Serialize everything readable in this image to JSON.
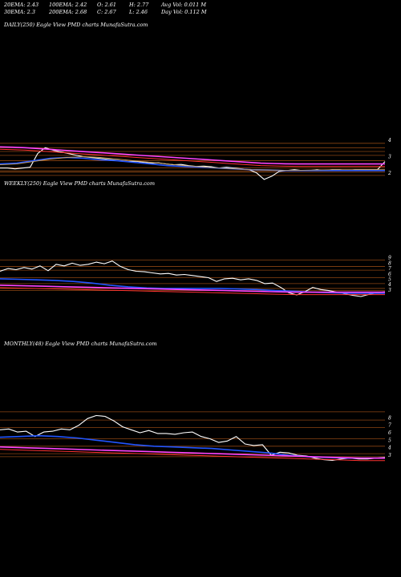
{
  "header": {
    "row1": [
      {
        "key": "ema20",
        "text": "20EMA: 2.43"
      },
      {
        "key": "ema100",
        "text": "100EMA: 2.42"
      },
      {
        "key": "open",
        "text": "O: 2.61"
      },
      {
        "key": "high",
        "text": "H: 2.77"
      },
      {
        "key": "avgvol",
        "text": "Avg Vol: 0.011  M"
      }
    ],
    "row2": [
      {
        "key": "ema30",
        "text": "30EMA: 2.3"
      },
      {
        "key": "ema200",
        "text": "200EMA: 2.68"
      },
      {
        "key": "close",
        "text": "C: 2.67"
      },
      {
        "key": "low",
        "text": "L: 2.46"
      },
      {
        "key": "dayvol",
        "text": "Day Vol: 0.112  M"
      }
    ]
  },
  "colors": {
    "background": "#000000",
    "price": "#ffffff",
    "ema_blue": "#2255ff",
    "ema_magenta": "#ff44ff",
    "ema_red": "#ff3333",
    "ema_gold": "#c8a060",
    "level_line": "#8b4513"
  },
  "chart_data": [
    {
      "type": "line",
      "title": "DAILY(250) Eagle  View  PMD charts MunafaSutra.com",
      "y_ticks": [
        "4",
        "3",
        "2"
      ],
      "y_tick_values": [
        4,
        3,
        2
      ],
      "ylim": [
        1.4,
        4.5
      ],
      "levels": [
        3.82,
        3.55,
        3.32,
        3.08,
        2.75,
        2.32,
        2.13,
        2.05,
        1.85
      ],
      "series": [
        {
          "role": "price",
          "values": [
            2.3,
            2.3,
            2.25,
            2.3,
            2.35,
            3.2,
            3.55,
            3.4,
            3.3,
            3.2,
            3.1,
            3.0,
            2.95,
            2.9,
            2.85,
            2.8,
            2.75,
            2.7,
            2.72,
            2.65,
            2.6,
            2.62,
            2.55,
            2.5,
            2.52,
            2.45,
            2.4,
            2.42,
            2.38,
            2.3,
            2.35,
            2.3,
            2.25,
            2.2,
            2.0,
            1.6,
            1.8,
            2.1,
            2.15,
            2.2,
            2.15,
            2.15,
            2.2,
            2.15,
            2.2,
            2.2,
            2.15,
            2.2,
            2.2,
            2.2,
            2.2,
            2.7
          ]
        },
        {
          "role": "ema",
          "color": "magenta",
          "values": [
            3.6,
            3.58,
            3.55,
            3.5,
            3.45,
            3.4,
            3.35,
            3.3,
            3.25,
            3.2,
            3.15,
            3.1,
            3.05,
            3.0,
            2.95,
            2.9,
            2.85,
            2.8,
            2.75,
            2.7,
            2.65,
            2.6,
            2.58,
            2.56,
            2.55,
            2.55,
            2.55,
            2.55,
            2.55,
            2.55,
            2.55,
            2.55
          ]
        },
        {
          "role": "ema",
          "color": "blue",
          "values": [
            2.55,
            2.6,
            2.75,
            2.9,
            2.95,
            2.9,
            2.8,
            2.75,
            2.65,
            2.55,
            2.45,
            2.4,
            2.35,
            2.3,
            2.25,
            2.2,
            2.18,
            2.15,
            2.15,
            2.15,
            2.15,
            2.15,
            2.15,
            2.15
          ]
        },
        {
          "role": "ema",
          "color": "gold",
          "values": [
            2.5,
            2.55,
            2.7,
            2.85,
            2.95,
            3.0,
            2.95,
            2.85,
            2.75,
            2.65,
            2.55,
            2.45,
            2.38,
            2.3,
            2.25,
            2.2,
            2.18,
            2.17,
            2.17,
            2.18,
            2.2,
            2.2,
            2.2,
            2.2
          ]
        }
      ]
    },
    {
      "type": "line",
      "title": "WEEKLY(250) Eagle  View  PMD charts MunafaSutra.com",
      "y_ticks": [
        "9",
        "8",
        "7",
        "6",
        "5",
        "4",
        "3"
      ],
      "y_tick_values": [
        9,
        8,
        7,
        6,
        5,
        4,
        3
      ],
      "ylim": [
        1.5,
        10
      ],
      "levels": [
        8.6,
        7.4,
        6.7,
        5.3,
        4.2,
        3.3,
        2.9
      ],
      "series": [
        {
          "role": "price",
          "values": [
            6.5,
            7.0,
            6.8,
            7.2,
            6.9,
            7.5,
            6.6,
            7.8,
            7.5,
            8.0,
            7.6,
            7.8,
            8.2,
            7.9,
            8.4,
            7.4,
            6.8,
            6.5,
            6.4,
            6.2,
            6.0,
            6.1,
            5.8,
            5.9,
            5.7,
            5.5,
            5.3,
            4.6,
            5.1,
            5.2,
            4.9,
            5.1,
            4.8,
            4.2,
            4.3,
            3.5,
            2.5,
            2.1,
            2.7,
            3.5,
            3.1,
            2.9,
            2.6,
            2.3,
            2.0,
            1.8,
            2.2,
            2.5,
            2.7
          ]
        },
        {
          "role": "ema",
          "color": "blue",
          "values": [
            5.1,
            5.0,
            4.9,
            4.8,
            4.6,
            4.3,
            3.9,
            3.6,
            3.4,
            3.3,
            3.3,
            3.3,
            3.3,
            3.2,
            3.1,
            2.9,
            2.8,
            2.6,
            2.5,
            2.4,
            2.4,
            2.4
          ]
        },
        {
          "role": "ema",
          "color": "magenta",
          "values": [
            3.9,
            3.8,
            3.7,
            3.6,
            3.5,
            3.4,
            3.3,
            3.2,
            3.1,
            3.0,
            2.9,
            2.8,
            2.7,
            2.6,
            2.6,
            2.6,
            2.6,
            2.6
          ]
        }
      ]
    },
    {
      "type": "line",
      "title": "MONTHLY(48) Eagle  View  PMD charts MunafaSutra.com",
      "y_ticks": [
        "8",
        "7",
        "6",
        "5",
        "4",
        "3"
      ],
      "y_tick_values": [
        8,
        7,
        6,
        5,
        4,
        3
      ],
      "ylim": [
        1.5,
        9
      ],
      "levels": [
        8.8,
        7.7,
        6.7,
        5.2,
        4.2,
        3.2,
        2.8
      ],
      "series": [
        {
          "role": "price",
          "values": [
            6.4,
            6.5,
            6.1,
            6.2,
            5.5,
            6.1,
            6.2,
            6.5,
            6.4,
            7.0,
            7.9,
            8.3,
            8.2,
            7.6,
            6.8,
            6.4,
            6.0,
            6.3,
            5.9,
            5.9,
            5.8,
            6.0,
            6.1,
            5.5,
            5.2,
            4.7,
            4.9,
            5.5,
            4.5,
            4.3,
            4.4,
            3.0,
            3.4,
            3.3,
            3.0,
            2.9,
            2.6,
            2.4,
            2.3,
            2.5,
            2.6,
            2.5,
            2.5,
            2.6,
            2.7
          ]
        },
        {
          "role": "ema",
          "color": "blue",
          "values": [
            5.4,
            5.5,
            5.6,
            5.5,
            5.3,
            5.0,
            4.7,
            4.4,
            4.2,
            4.1,
            4.0,
            3.9,
            3.7,
            3.5,
            3.3,
            3.0,
            2.8,
            2.7,
            2.6,
            2.6,
            2.6
          ]
        },
        {
          "role": "ema",
          "color": "magenta",
          "values": [
            4.1,
            4.0,
            3.9,
            3.8,
            3.7,
            3.6,
            3.5,
            3.4,
            3.3,
            3.2,
            3.1,
            3.0,
            2.9,
            2.8,
            2.7,
            2.6,
            2.6
          ]
        }
      ]
    }
  ]
}
